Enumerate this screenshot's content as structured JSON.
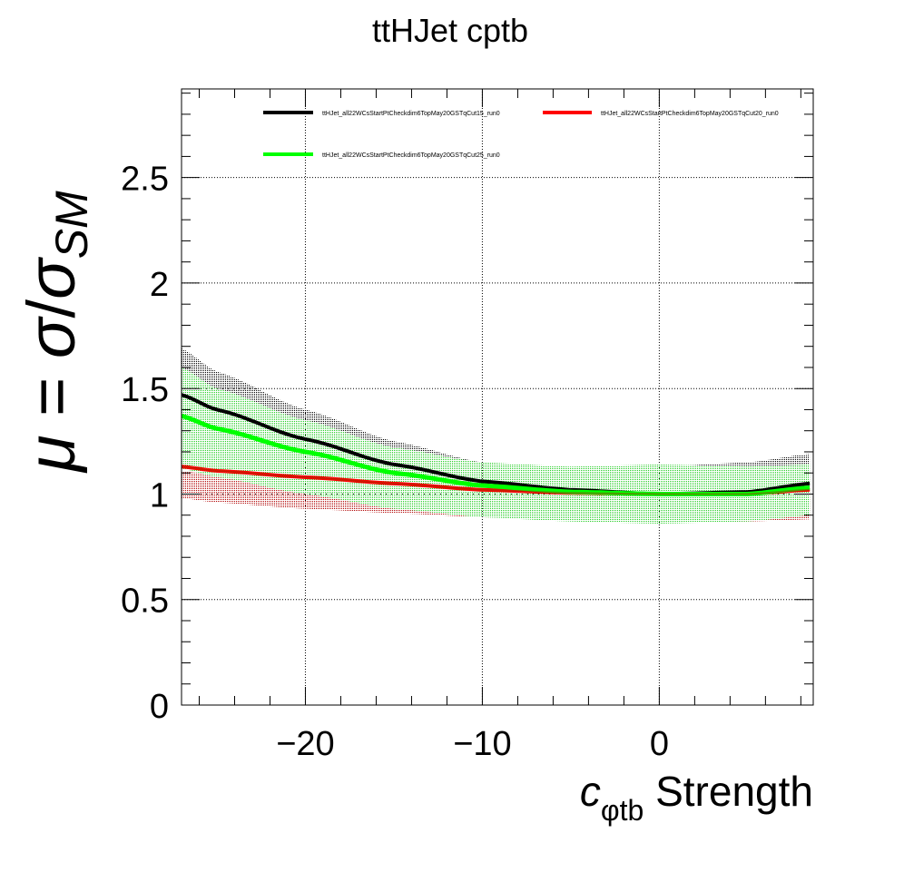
{
  "chart_data": {
    "type": "line",
    "title": "ttHJet cptb",
    "xlabel": {
      "var": "c",
      "sub": "φtb",
      "suffix": " Strength"
    },
    "ylabel": {
      "mu": "μ",
      "eq": " = ",
      "sigma1": "σ",
      "slash": "/",
      "sigma2": "σ",
      "sub": "SM"
    },
    "xlim": [
      -27,
      8.7
    ],
    "ylim": [
      0,
      2.92
    ],
    "grid": true,
    "legend_position": "top",
    "x_ticks": [
      {
        "value": -20,
        "label": "−20"
      },
      {
        "value": -10,
        "label": "−10"
      },
      {
        "value": 0,
        "label": "0"
      }
    ],
    "y_ticks": [
      {
        "value": 0,
        "label": "0"
      },
      {
        "value": 0.5,
        "label": "0.5"
      },
      {
        "value": 1,
        "label": "1"
      },
      {
        "value": 1.5,
        "label": "1.5"
      },
      {
        "value": 2,
        "label": "2"
      },
      {
        "value": 2.5,
        "label": "2.5"
      }
    ],
    "series": [
      {
        "name": "ttHJet_all22WCsStartPtCheckdim6TopMay20GSTqCut15_run0",
        "color": "#000000",
        "points": [
          [
            -27,
            1.47
          ],
          [
            -25,
            1.4
          ],
          [
            -20,
            1.26
          ],
          [
            -15,
            1.14
          ],
          [
            -10,
            1.06
          ],
          [
            -5,
            1.02
          ],
          [
            0,
            1.0
          ],
          [
            5,
            1.01
          ],
          [
            8.5,
            1.05
          ]
        ],
        "band_upper": [
          [
            -27,
            1.69
          ],
          [
            -25,
            1.58
          ],
          [
            -20,
            1.4
          ],
          [
            -15,
            1.25
          ],
          [
            -10,
            1.15
          ],
          [
            -5,
            1.12
          ],
          [
            0,
            1.13
          ],
          [
            5,
            1.15
          ],
          [
            8.5,
            1.19
          ]
        ],
        "band_lower": [
          [
            -27,
            1.2
          ],
          [
            -25,
            1.16
          ],
          [
            -20,
            1.05
          ],
          [
            -15,
            0.97
          ],
          [
            -10,
            0.92
          ],
          [
            -5,
            0.89
          ],
          [
            0,
            0.87
          ],
          [
            5,
            0.89
          ],
          [
            8.5,
            0.92
          ]
        ]
      },
      {
        "name": "ttHJet_all22WCsStartPtCheckdim6TopMay20GSTqCut20_run0",
        "color": "#ff0000",
        "points": [
          [
            -27,
            1.13
          ],
          [
            -25,
            1.11
          ],
          [
            -20,
            1.08
          ],
          [
            -15,
            1.05
          ],
          [
            -10,
            1.02
          ],
          [
            -5,
            1.005
          ],
          [
            0,
            1.0
          ],
          [
            5,
            1.0
          ],
          [
            8.5,
            1.02
          ]
        ],
        "band_upper": [
          [
            -27,
            1.11
          ],
          [
            -25,
            1.09
          ],
          [
            -20,
            1.07
          ],
          [
            -15,
            1.04
          ],
          [
            -10,
            1.02
          ],
          [
            -5,
            1.01
          ],
          [
            0,
            1.0
          ],
          [
            5,
            1.01
          ],
          [
            8.5,
            1.03
          ]
        ],
        "band_lower": [
          [
            -27,
            0.98
          ],
          [
            -25,
            0.96
          ],
          [
            -20,
            0.93
          ],
          [
            -15,
            0.91
          ],
          [
            -10,
            0.89
          ],
          [
            -5,
            0.88
          ],
          [
            0,
            0.87
          ],
          [
            5,
            0.87
          ],
          [
            8.5,
            0.88
          ]
        ]
      },
      {
        "name": "ttHJet_all22WCsStartPtCheckdim6TopMay20GSTqCut25_run0",
        "color": "#00ff00",
        "points": [
          [
            -27,
            1.37
          ],
          [
            -25,
            1.31
          ],
          [
            -20,
            1.2
          ],
          [
            -15,
            1.1
          ],
          [
            -10,
            1.04
          ],
          [
            -5,
            1.01
          ],
          [
            0,
            1.0
          ],
          [
            5,
            1.0
          ],
          [
            8.5,
            1.03
          ]
        ],
        "band_upper": [
          [
            -27,
            1.6
          ],
          [
            -25,
            1.5
          ],
          [
            -20,
            1.35
          ],
          [
            -15,
            1.22
          ],
          [
            -10,
            1.15
          ],
          [
            -5,
            1.13
          ],
          [
            0,
            1.14
          ],
          [
            5,
            1.13
          ],
          [
            8.5,
            1.14
          ]
        ],
        "band_lower": [
          [
            -27,
            1.12
          ],
          [
            -25,
            1.08
          ],
          [
            -20,
            1.0
          ],
          [
            -15,
            0.93
          ],
          [
            -10,
            0.89
          ],
          [
            -5,
            0.87
          ],
          [
            0,
            0.86
          ],
          [
            5,
            0.87
          ],
          [
            8.5,
            0.9
          ]
        ]
      }
    ]
  }
}
